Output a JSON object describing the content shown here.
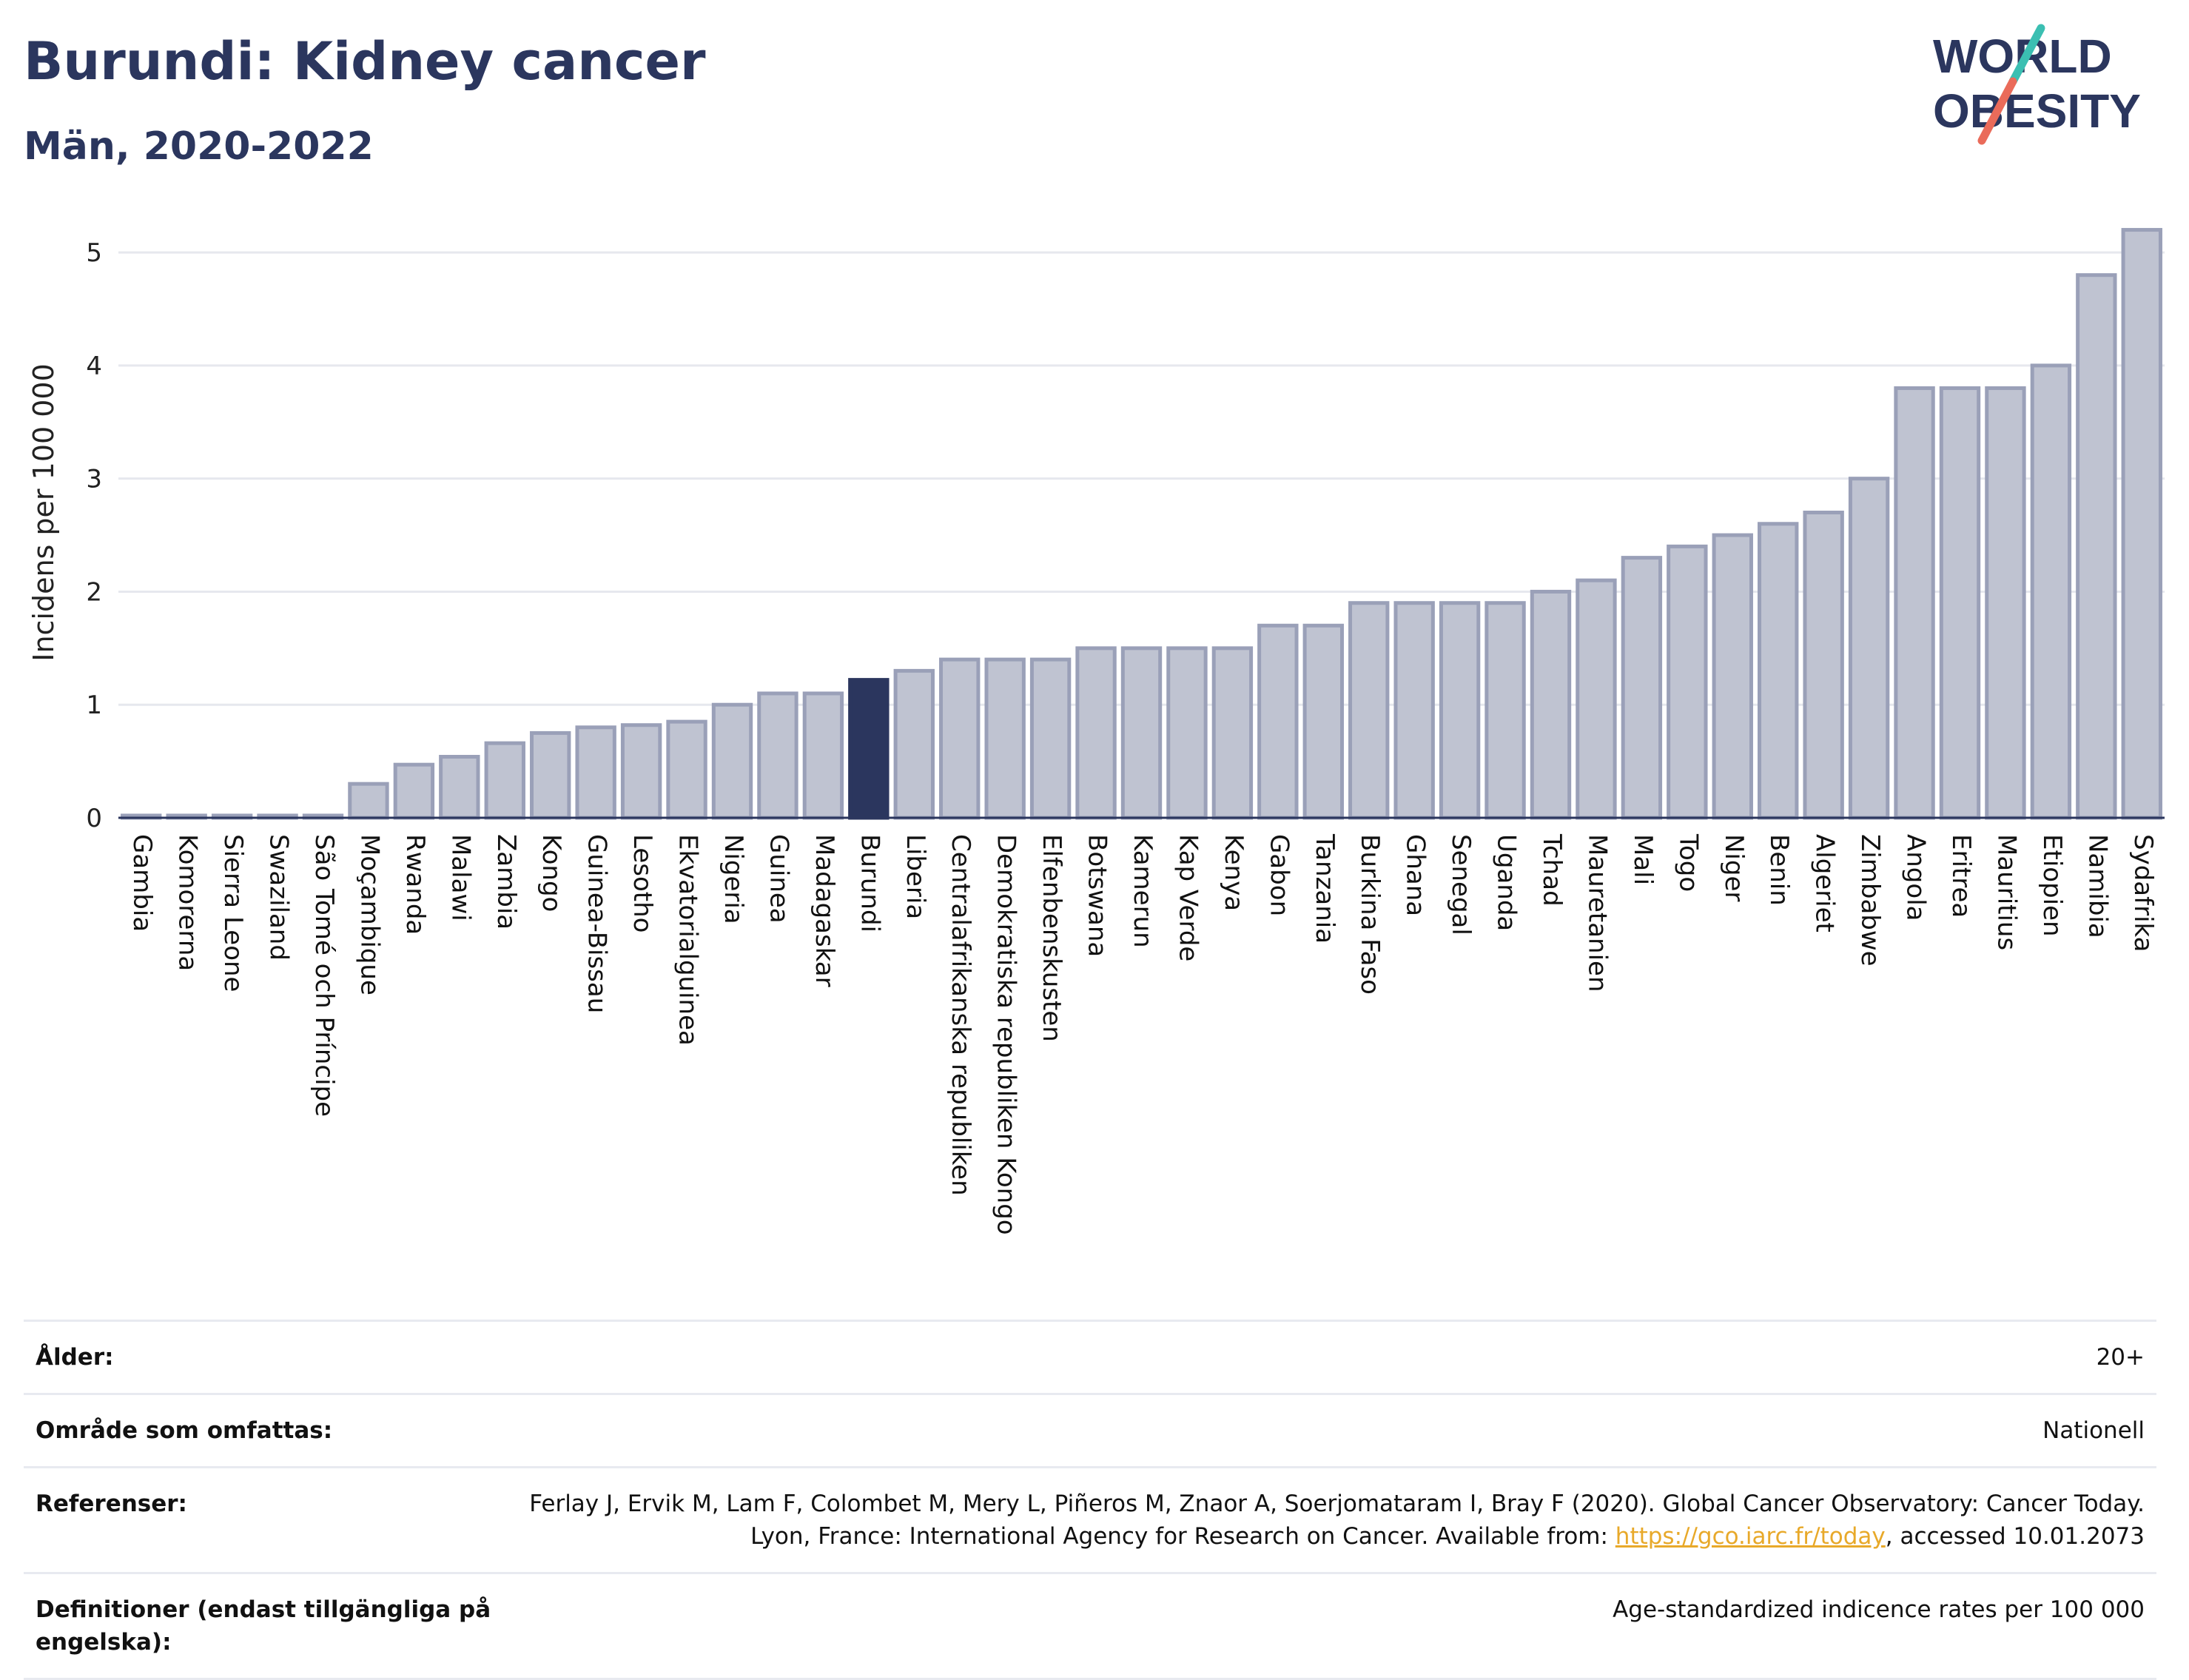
{
  "header": {
    "title": "Burundi: Kidney cancer",
    "subtitle": "Män, 2020-2022"
  },
  "logo": {
    "line1": "WORLD",
    "line2": "OBESITY",
    "colors": {
      "text": "#2b365e",
      "slash_top": "#3bbfb2",
      "slash_bottom": "#ea6b5a"
    }
  },
  "chart_data": {
    "type": "bar",
    "ylabel": "Incidens per 100 000",
    "ylim": [
      0,
      5.4
    ],
    "yticks": [
      0,
      1,
      2,
      3,
      4,
      5
    ],
    "grid": true,
    "highlight": "Burundi",
    "colors": {
      "bar": "#bfc3d1",
      "bar_edge": "#9aa0b8",
      "highlight": "#2b365e",
      "grid": "#e6e8ee",
      "axis": "#2b365e"
    },
    "categories": [
      "Gambia",
      "Komorerna",
      "Sierra Leone",
      "Swaziland",
      "São Tomé och Príncipe",
      "Moçambique",
      "Rwanda",
      "Malawi",
      "Zambia",
      "Kongo",
      "Guinea-Bissau",
      "Lesotho",
      "Ekvatorialguinea",
      "Nigeria",
      "Guinea",
      "Madagaskar",
      "Burundi",
      "Liberia",
      "Centralafrikanska republiken",
      "Demokratiska republiken Kongo",
      "Elfenbenskusten",
      "Botswana",
      "Kamerun",
      "Kap Verde",
      "Kenya",
      "Gabon",
      "Tanzania",
      "Burkina Faso",
      "Ghana",
      "Senegal",
      "Uganda",
      "Tchad",
      "Mauretanien",
      "Mali",
      "Togo",
      "Niger",
      "Benin",
      "Algeriet",
      "Zimbabwe",
      "Angola",
      "Eritrea",
      "Mauritius",
      "Etiopien",
      "Namibia",
      "Sydafrika"
    ],
    "values": [
      0.02,
      0.02,
      0.02,
      0.02,
      0.02,
      0.3,
      0.47,
      0.54,
      0.66,
      0.75,
      0.8,
      0.82,
      0.85,
      1.0,
      1.1,
      1.1,
      1.22,
      1.3,
      1.4,
      1.4,
      1.4,
      1.5,
      1.5,
      1.5,
      1.5,
      1.7,
      1.7,
      1.9,
      1.9,
      1.9,
      1.9,
      2.0,
      2.1,
      2.3,
      2.4,
      2.5,
      2.6,
      2.7,
      3.0,
      3.8,
      3.8,
      3.8,
      4.0,
      4.8,
      5.2
    ]
  },
  "meta": {
    "rows": [
      {
        "label": "Ålder:",
        "value": "20+"
      },
      {
        "label": "Område som omfattas:",
        "value": "Nationell"
      },
      {
        "label": "Referenser:",
        "value_pre": "Ferlay J, Ervik M, Lam F, Colombet M, Mery L, Piñeros M, Znaor A, Soerjomataram I, Bray F (2020). Global Cancer Observatory: Cancer Today. Lyon, France: International Agency for Research on Cancer. Available from: ",
        "link": "https://gco.iarc.fr/today",
        "value_post": ", accessed 10.01.2073"
      },
      {
        "label": "Definitioner (endast tillgängliga på engelska):",
        "value": "Age-standardized indicence rates per 100 000"
      }
    ]
  }
}
